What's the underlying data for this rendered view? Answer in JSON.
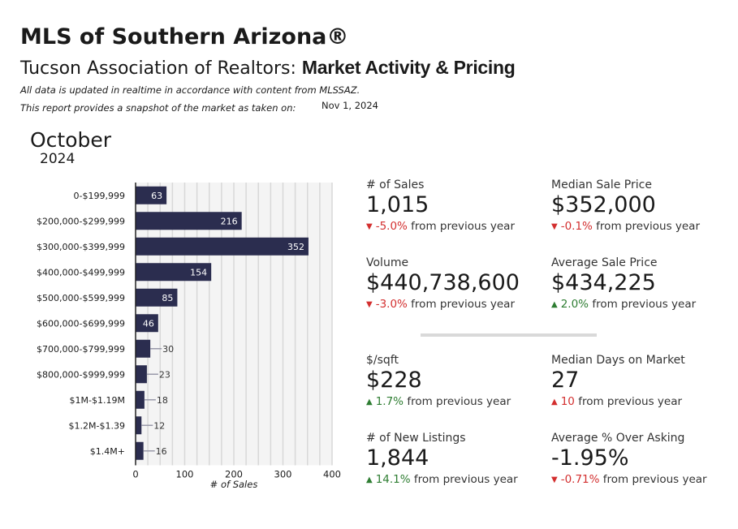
{
  "header": {
    "title": "MLS of Southern Arizona®",
    "subtitle_plain": "Tucson Association of Realtors: ",
    "subtitle_strong": "Market Activity & Pricing",
    "note1": "All data is updated in realtime in accordance with content from MLSSAZ.",
    "note2": "This report provides a snapshot of the market as taken on:",
    "snapshot_date": "Nov 1, 2024"
  },
  "period": {
    "month": "October",
    "year": "2024"
  },
  "chart_data": {
    "type": "bar",
    "orientation": "horizontal",
    "categories": [
      "0-$199,999",
      "$200,000-$299,999",
      "$300,000-$399,999",
      "$400,000-$499,999",
      "$500,000-$599,999",
      "$600,000-$699,999",
      "$700,000-$799,999",
      "$800,000-$999,999",
      "$1M-$1.19M",
      "$1.2M-$1.39",
      "$1.4M+"
    ],
    "values": [
      63,
      216,
      352,
      154,
      85,
      46,
      30,
      23,
      18,
      12,
      16
    ],
    "xlabel": "# of Sales",
    "xlim": [
      0,
      400
    ],
    "xticks": [
      0,
      100,
      200,
      300,
      400
    ],
    "grid": true,
    "bar_color": "#2b2d4f"
  },
  "stats": [
    {
      "label": "# of Sales",
      "value": "1,015",
      "change": "-5.0%",
      "suffix": "from previous year",
      "direction": "down"
    },
    {
      "label": "Median Sale Price",
      "value": "$352,000",
      "change": "-0.1%",
      "suffix": "from previous year",
      "direction": "down"
    },
    {
      "label": "Volume",
      "value": "$440,738,600",
      "change": "-3.0%",
      "suffix": "from previous year",
      "direction": "down"
    },
    {
      "label": "Average Sale Price",
      "value": "$434,225",
      "change": "2.0%",
      "suffix": "from previous year",
      "direction": "up-green"
    },
    {
      "label": "$/sqft",
      "value": "$228",
      "change": "1.7%",
      "suffix": "from previous year",
      "direction": "up-green"
    },
    {
      "label": "Median Days on Market",
      "value": "27",
      "change": "10",
      "suffix": "from previous year",
      "direction": "up-red"
    },
    {
      "label": "# of New Listings",
      "value": "1,844",
      "change": "14.1%",
      "suffix": "from previous year",
      "direction": "up-green"
    },
    {
      "label": "Average % Over Asking",
      "value": "-1.95%",
      "change": "-0.71%",
      "suffix": "from previous year",
      "direction": "down"
    }
  ],
  "colors": {
    "down": "#d32f2f",
    "up_good": "#2e7d32",
    "up_bad": "#d32f2f",
    "bar": "#2b2d4f"
  },
  "icons": {
    "down": "down-arrow-icon",
    "up": "up-arrow-icon"
  }
}
